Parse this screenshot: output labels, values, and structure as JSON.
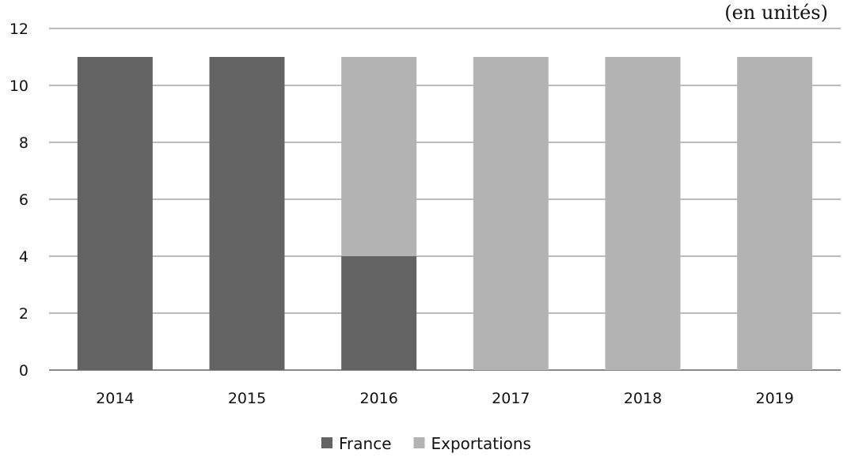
{
  "chart_data": {
    "type": "bar",
    "stacked": true,
    "unit_label": "(en unités)",
    "categories": [
      "2014",
      "2015",
      "2016",
      "2017",
      "2018",
      "2019"
    ],
    "series": [
      {
        "name": "France",
        "color": "#636363",
        "values": [
          11,
          11,
          4,
          0,
          0,
          0
        ]
      },
      {
        "name": "Exportations",
        "color": "#b3b3b3",
        "values": [
          0,
          0,
          7,
          11,
          11,
          11
        ]
      }
    ],
    "ylim": [
      0,
      12
    ],
    "yticks": [
      "0",
      "2",
      "4",
      "6",
      "8",
      "10",
      "12"
    ],
    "grid": true,
    "legend_position": "bottom"
  }
}
